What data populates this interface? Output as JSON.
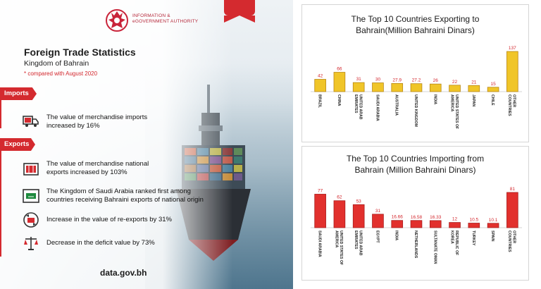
{
  "header": {
    "authority_line1": "INFORMATION &",
    "authority_line2": "eGOVERNMENT AUTHORITY"
  },
  "intro": {
    "title": "Foreign Trade Statistics",
    "subtitle": "Kingdom of Bahrain",
    "note": "* compared with August 2020"
  },
  "imports": {
    "label": "Imports",
    "items": [
      {
        "icon": "truck-icon",
        "text1": "The value of merchandise imports",
        "text2": "increased by 16%"
      }
    ]
  },
  "exports": {
    "label": "Exports",
    "items": [
      {
        "icon": "container-icon",
        "text1": "The value of merchandise national",
        "text2": "exports increased by 103%"
      },
      {
        "icon": "saudi-flag-icon",
        "text1": "The Kingdom of Saudi Arabia ranked first among",
        "text2": "countries receiving Bahraini exports of national origin"
      },
      {
        "icon": "re-export-icon",
        "text1": "Increase in the value of re-exports by 31%",
        "text2": ""
      },
      {
        "icon": "balance-scale-icon",
        "text1": "Decrease in the deficit value by 73%",
        "text2": ""
      }
    ]
  },
  "footer": {
    "site": "data.gov.bh"
  },
  "colors": {
    "red": "#d42a2f",
    "gold": "#f0c528",
    "gold_dark": "#c8971c",
    "bar_red": "#e2302d"
  },
  "chart_data": [
    {
      "type": "bar",
      "title_line1": "The Top 10 Countries Exporting to",
      "title_line2": "Bahrain(Million Bahraini Dinars)",
      "categories": [
        "BRAZIL",
        "CHINA",
        "UNITED ARAB EMIRATES",
        "SAUDI ARABIA",
        "AUSTRALIA",
        "UNITED KINGDOM",
        "INDIA",
        "UNITED STATES OF AMERICA",
        "JAPAN",
        "CHILE",
        "OTHER COUNTRIES"
      ],
      "category_lines": [
        [
          "BRAZIL"
        ],
        [
          "CHINA"
        ],
        [
          "UNITED ARAB",
          "EMIRATES"
        ],
        [
          "SAUDI ARABIA"
        ],
        [
          "AUSTRALIA"
        ],
        [
          "UNITED KINGDOM"
        ],
        [
          "INDIA"
        ],
        [
          "UNITED STATES OF",
          "AMERICA"
        ],
        [
          "JAPAN"
        ],
        [
          "CHILE"
        ],
        [
          "OTHER",
          "COUNTRIES"
        ]
      ],
      "values": [
        42,
        66,
        31,
        30,
        27.9,
        27.2,
        26,
        22,
        21,
        15,
        137
      ],
      "value_labels": [
        "42",
        "66",
        "31",
        "30",
        "27.9",
        "27.2",
        "26",
        "22",
        "21",
        "15",
        "137"
      ],
      "ylim": [
        0,
        137
      ],
      "color": "#f0c528"
    },
    {
      "type": "bar",
      "title_line1": "The Top 10 Countries Importing from",
      "title_line2": "Bahrain (Million Bahraini Dinars)",
      "categories": [
        "SAUDI ARABIA",
        "UNITED STATES OF AMERICA",
        "UNITED ARAB EMIRATES",
        "EGYPT",
        "INDIA",
        "NETHERLANDS",
        "SULTANATE OMAN",
        "REPUBLIC OF KOREA",
        "TURKEY",
        "SPAIN",
        "OTHER COUNTRIES"
      ],
      "category_lines": [
        [
          "SAUDI ARABIA"
        ],
        [
          "UNITED STATES OF",
          "AMERICA"
        ],
        [
          "UNITED ARAB",
          "EMIRATES"
        ],
        [
          "EGYPT"
        ],
        [
          "INDIA"
        ],
        [
          "NETHERLANDS"
        ],
        [
          "SULTANATE OMAN"
        ],
        [
          "REPUBLIC OF",
          "KOREA"
        ],
        [
          "TURKEY"
        ],
        [
          "SPAIN"
        ],
        [
          "OTHER",
          "COUNTRIES"
        ]
      ],
      "values": [
        77,
        62,
        53,
        31,
        16.66,
        16.58,
        16.33,
        12,
        10.5,
        10.1,
        81
      ],
      "value_labels": [
        "77",
        "62",
        "53",
        "31",
        "16.66",
        "16.58",
        "16.33",
        "12",
        "10.5",
        "10.1",
        "81"
      ],
      "ylim": [
        0,
        81
      ],
      "color": "#e2302d"
    }
  ]
}
